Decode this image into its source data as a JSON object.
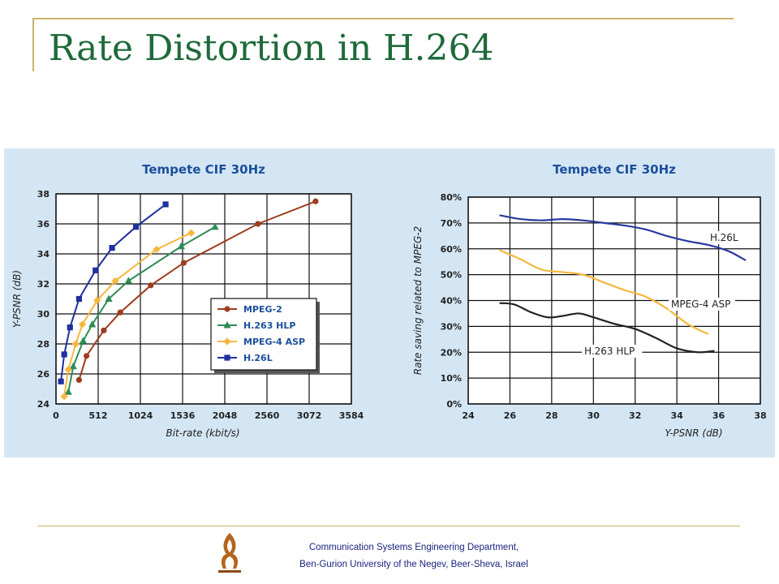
{
  "slide": {
    "title": "Rate Distortion in H.264",
    "footer_line1": "Communication Systems Engineering Department,",
    "footer_line2": "Ben-Gurion University of the Negev, Beer-Sheva, Israel"
  },
  "colors": {
    "title": "#1f6a3a",
    "rule": "#c9b46b",
    "figure_bg": "#d4e6f4",
    "chart_title": "#1c4f9c"
  },
  "chart_data": [
    {
      "type": "line",
      "title": "Tempete CIF 30Hz",
      "xlabel": "Bit-rate (kbit/s)",
      "ylabel": "Y-PSNR (dB)",
      "xlim": [
        0,
        3584
      ],
      "ylim": [
        24,
        38
      ],
      "xticks": [
        0,
        512,
        1024,
        1536,
        2048,
        2560,
        3072,
        3584
      ],
      "yticks": [
        24,
        26,
        28,
        30,
        32,
        34,
        36,
        38
      ],
      "grid": true,
      "legend_placement": "center-right",
      "series": [
        {
          "name": "MPEG-2",
          "color": "#9c3d1e",
          "marker": "circle",
          "x": [
            280,
            370,
            580,
            780,
            1150,
            1550,
            2450,
            3150
          ],
          "y": [
            25.6,
            27.2,
            28.9,
            30.1,
            31.9,
            33.4,
            36.0,
            37.5
          ]
        },
        {
          "name": "H.263 HLP",
          "color": "#2e8b57",
          "marker": "triangle",
          "x": [
            150,
            210,
            330,
            440,
            640,
            880,
            1520,
            1930
          ],
          "y": [
            24.8,
            26.5,
            28.2,
            29.3,
            31.0,
            32.2,
            34.5,
            35.8
          ]
        },
        {
          "name": "MPEG-4 ASP",
          "color": "#f5b83d",
          "marker": "diamond",
          "x": [
            100,
            150,
            240,
            320,
            500,
            720,
            1220,
            1640
          ],
          "y": [
            24.5,
            26.3,
            28.0,
            29.3,
            30.9,
            32.2,
            34.3,
            35.4
          ]
        },
        {
          "name": "H.26L",
          "color": "#1f2f9e",
          "marker": "square",
          "x": [
            60,
            100,
            170,
            280,
            480,
            680,
            970,
            1330
          ],
          "y": [
            25.5,
            27.3,
            29.1,
            31.0,
            32.9,
            34.4,
            35.8,
            37.3
          ]
        }
      ]
    },
    {
      "type": "line",
      "title": "Tempete CIF 30Hz",
      "xlabel": "Y-PSNR (dB)",
      "ylabel": "Rate saving related to MPEG-2",
      "xlim": [
        24,
        38
      ],
      "ylim": [
        0,
        80
      ],
      "xticks": [
        24,
        26,
        28,
        30,
        32,
        34,
        36,
        38
      ],
      "yticks": [
        0,
        10,
        20,
        30,
        40,
        50,
        60,
        70,
        80
      ],
      "ytick_suffix": "%",
      "grid": true,
      "series": [
        {
          "name": "H.26L",
          "color": "#2a3a9e",
          "x": [
            25.5,
            26.5,
            27.5,
            28.5,
            29.5,
            30.5,
            31.5,
            32.5,
            33.5,
            34.5,
            35.5,
            36.5,
            37.3
          ],
          "y": [
            73,
            71.5,
            71,
            71.5,
            71,
            70,
            69,
            67.5,
            65,
            63,
            61.5,
            59,
            55.5
          ]
        },
        {
          "name": "MPEG-4 ASP",
          "color": "#f5b83d",
          "x": [
            25.5,
            26.5,
            27.5,
            28.5,
            29.5,
            30.5,
            31.5,
            32.5,
            33.5,
            34.5,
            35.5
          ],
          "y": [
            59.5,
            56,
            52,
            51,
            50,
            47,
            44,
            41.5,
            37,
            31,
            27
          ]
        },
        {
          "name": "H.263 HLP",
          "color": "#222222",
          "x": [
            25.5,
            26.2,
            27.0,
            27.8,
            28.5,
            29.3,
            30.0,
            31.0,
            32.0,
            33.0,
            34.0,
            35.0,
            35.8
          ],
          "y": [
            39,
            38.5,
            35.5,
            33.5,
            34,
            35,
            33.5,
            31,
            29,
            25.5,
            21.5,
            20,
            20.5
          ]
        }
      ],
      "annotations": [
        "H.26L",
        "MPEG-4 ASP",
        "H.263 HLP"
      ]
    }
  ]
}
